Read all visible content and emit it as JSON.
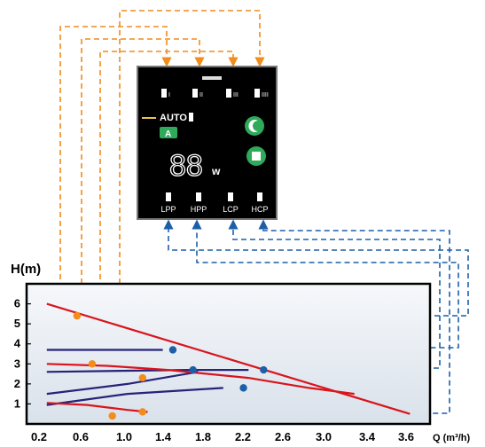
{
  "controller": {
    "mode_label": "AUTO",
    "mode_badge": "A",
    "power_display": "88",
    "power_unit": "w",
    "top_mode_labels": [
      "I",
      "II",
      "III",
      "IIII"
    ],
    "bottom_mode_labels": [
      "LPP",
      "HPP",
      "LCP",
      "HCP"
    ],
    "buttons": [
      {
        "name": "night-mode-button",
        "icon": "moon-icon",
        "color": "#2eaa5a"
      },
      {
        "name": "mode-select-button",
        "icon": "square-icon",
        "color": "#2eaa5a"
      }
    ],
    "display_color": "#ffffff",
    "body_color": "#000000"
  },
  "chart_data": {
    "type": "line",
    "ylabel": "H(m)",
    "xlabel": "Q (m³/h)",
    "xticks": [
      "0.2",
      "0.6",
      "1.0",
      "1.4",
      "1.8",
      "2.2",
      "2.6",
      "3.0",
      "3.4",
      "3.6"
    ],
    "yticks": [
      "1",
      "2",
      "3",
      "4",
      "5",
      "6"
    ],
    "red_curves": [
      {
        "points": [
          [
            0,
            6.0
          ],
          [
            3.6,
            0.5
          ]
        ]
      },
      {
        "points": [
          [
            0,
            3.0
          ],
          [
            0.6,
            2.9
          ],
          [
            1.2,
            2.7
          ],
          [
            2.0,
            2.3
          ],
          [
            2.6,
            1.8
          ],
          [
            3.05,
            1.5
          ]
        ]
      },
      {
        "points": [
          [
            0,
            1.05
          ],
          [
            0.4,
            0.95
          ],
          [
            0.8,
            0.7
          ],
          [
            1.0,
            0.6
          ]
        ]
      }
    ],
    "blue_curves": [
      {
        "points": [
          [
            0,
            3.7
          ],
          [
            1.15,
            3.7
          ]
        ]
      },
      {
        "points": [
          [
            0,
            2.6
          ],
          [
            1.4,
            2.7
          ],
          [
            2.0,
            2.7
          ]
        ]
      },
      {
        "points": [
          [
            0,
            1.5
          ],
          [
            0.8,
            2.0
          ],
          [
            1.5,
            2.6
          ]
        ]
      },
      {
        "points": [
          [
            0,
            0.95
          ],
          [
            0.8,
            1.5
          ],
          [
            1.75,
            1.8
          ]
        ]
      }
    ],
    "orange_points": [
      [
        0.3,
        5.4
      ],
      [
        0.45,
        3.0
      ],
      [
        0.65,
        0.4
      ],
      [
        0.95,
        2.3
      ],
      [
        0.95,
        0.6
      ]
    ],
    "blue_points": [
      [
        1.25,
        3.7
      ],
      [
        1.45,
        2.7
      ],
      [
        2.15,
        2.7
      ],
      [
        1.95,
        1.8
      ]
    ],
    "xlim": [
      -0.2,
      3.8
    ],
    "ylim": [
      0,
      7
    ],
    "colors": {
      "red": "#d9141c",
      "blue": "#26237a",
      "orange": "#f28c1a",
      "link_blue": "#1c5fa8"
    }
  }
}
